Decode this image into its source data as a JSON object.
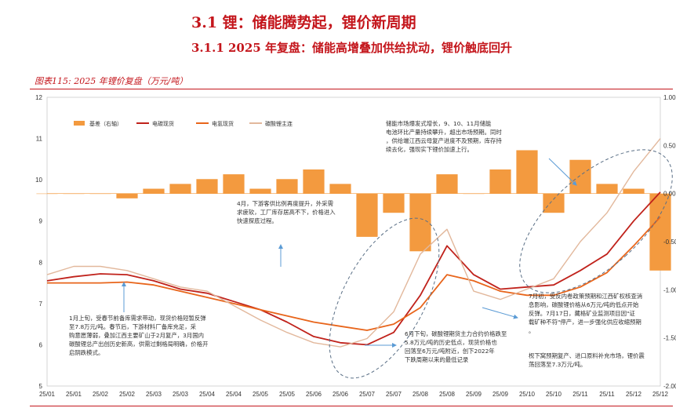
{
  "header": {
    "section_title": "3.1  锂：储能腾势起，锂价新周期",
    "subsection_title": "3.1.1 2025 年复盘：储能高增叠加供给扰动，锂价触底回升",
    "figure_caption": "图表115:  2025 年锂价复盘（万元/吨）"
  },
  "colors": {
    "spread": "#f39a3f",
    "lc_battery": "#c0221b",
    "lh_battery": "#e8651b",
    "lepidolite": "#e2b89c",
    "annotation_line": "#5a6f86",
    "arrow": "#5b9bd5",
    "accent": "#c4161c"
  },
  "chart_data": {
    "type": "line",
    "left_axis": {
      "ylim": [
        5,
        12
      ],
      "ticks": [
        "5",
        "6",
        "7",
        "8",
        "9",
        "10",
        "11",
        "12"
      ]
    },
    "right_axis": {
      "ylim": [
        -2.0,
        1.0
      ],
      "ticks": [
        "1.00",
        "0.50",
        "0.00",
        "-0.50",
        "-1.00",
        "-1.50",
        "-2.00"
      ]
    },
    "x_ticks": [
      "25/01",
      "25/01",
      "25/02",
      "25/02",
      "25/03",
      "25/03",
      "25/04",
      "25/04",
      "25/05",
      "25/05",
      "25/06",
      "25/06",
      "25/07",
      "25/07",
      "25/08",
      "25/08",
      "25/09",
      "25/09",
      "25/10",
      "25/10",
      "25/11",
      "25/11",
      "25/12",
      "25/12"
    ],
    "legend": [
      "基差（右轴）",
      "电碳现货",
      "电氢现货",
      "碳酸锂主连"
    ],
    "x": [
      0,
      1,
      2,
      3,
      4,
      5,
      6,
      7,
      8,
      9,
      10,
      11,
      12,
      13,
      14,
      15,
      16,
      17,
      18,
      19,
      20,
      21,
      22,
      23
    ],
    "series": [
      {
        "name": "电碳现货",
        "axis": "left",
        "values": [
          7.55,
          7.65,
          7.72,
          7.7,
          7.55,
          7.35,
          7.25,
          7.05,
          6.85,
          6.55,
          6.2,
          6.05,
          6.0,
          6.3,
          7.2,
          8.4,
          7.7,
          7.35,
          7.4,
          7.45,
          7.8,
          8.2,
          9.0,
          9.7
        ]
      },
      {
        "name": "电氢现货",
        "axis": "left",
        "values": [
          7.5,
          7.5,
          7.5,
          7.52,
          7.45,
          7.3,
          7.15,
          7.0,
          6.85,
          6.7,
          6.55,
          6.45,
          6.35,
          6.5,
          6.9,
          7.7,
          7.55,
          7.3,
          7.2,
          7.2,
          7.4,
          7.75,
          8.4,
          9.1
        ]
      },
      {
        "name": "碳酸锂主连",
        "axis": "left",
        "values": [
          7.7,
          7.9,
          7.9,
          7.8,
          7.6,
          7.4,
          7.3,
          6.95,
          6.6,
          6.3,
          6.05,
          5.95,
          6.15,
          6.8,
          8.2,
          8.8,
          7.3,
          7.1,
          7.35,
          7.6,
          8.5,
          9.2,
          10.2,
          11.0
        ]
      },
      {
        "name": "基差（右轴）",
        "axis": "right",
        "values": [
          0.0,
          0.0,
          0.0,
          -0.05,
          0.05,
          0.1,
          0.15,
          0.2,
          0.05,
          0.15,
          0.25,
          0.1,
          -0.45,
          -0.2,
          -0.6,
          0.2,
          0.0,
          0.25,
          0.45,
          -0.2,
          0.35,
          0.1,
          0.05,
          -0.8
        ]
      }
    ],
    "annotations": [
      "储能市场爆发式增长，9、10、11月储能电池环比产量持续攀升，超出市场预期。同时，供给端江西云母复产进度不及预期，库存持续去化，强现实下锂价加速上行。",
      "4月，下游客供比例再度提升，外采需求疲软，工厂库存居高不下，价格进入快速探底过程。",
      "1月上旬，受春节前备库需求带动，现货价格短暂反弹至7.8万元/吨。春节后，下游材料厂备库充足，采购意愿薄弱，叠加江西主要矿山于2月复产，3月国内碳酸锂总产出创历史新高，供需过剩格局明确，价格开启阴跌模式。",
      "6月下旬，碳酸锂期货主力合约价格跌至5.8万元/吨的历史低点，现货价格也回落至6万元/吨附近，创下2022年下跌周期以来的最低记录",
      "7月初，受反内卷政策预期和江西矿权核查消息影响，碳酸锂价格从6万元/吨的低点开始反弹。7月17日，藏格矿业监测项目因\"证载矿种不符\"停产，进一步强化供应收缩预期。",
      "枧下窝预期复产、进口原料补充市场，锂价震荡回落至7.3万元/吨。"
    ]
  }
}
